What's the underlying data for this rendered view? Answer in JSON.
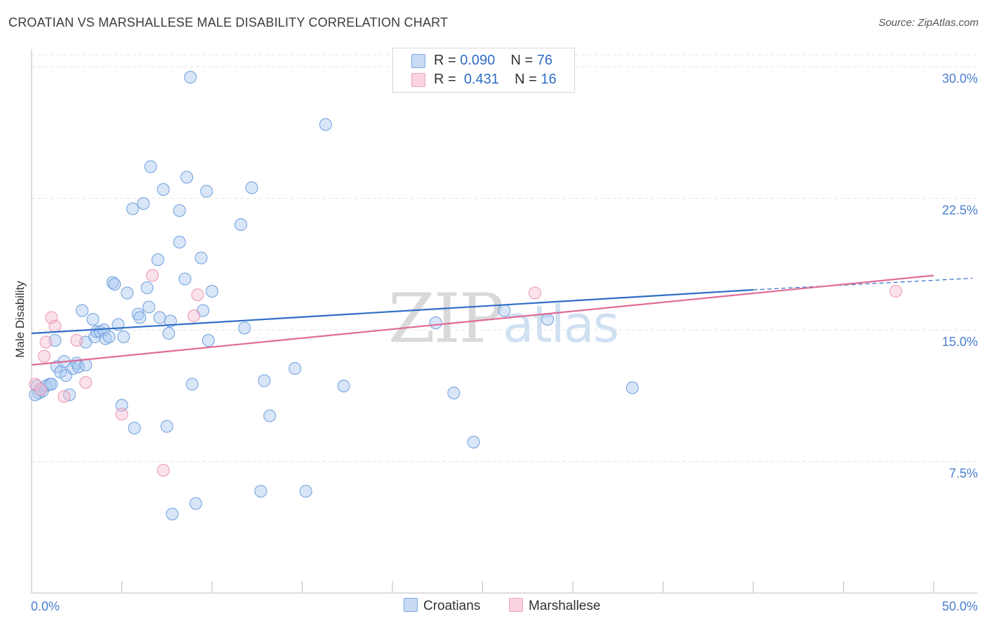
{
  "header": {
    "title": "CROATIAN VS MARSHALLESE MALE DISABILITY CORRELATION CHART",
    "source": "Source: ZipAtlas.com"
  },
  "legend": {
    "rows": [
      {
        "r_label": "R =",
        "r_value": "0.090",
        "n_label": "N =",
        "n_value": "76",
        "color": "#a9c8ef"
      },
      {
        "r_label": "R =",
        "r_value": "0.431",
        "n_label": "N =",
        "n_value": "16",
        "color": "#f6bdd0"
      }
    ],
    "bottom": [
      {
        "label": "Croatians",
        "color": "#a9c8ef"
      },
      {
        "label": "Marshallese",
        "color": "#f6bdd0"
      }
    ]
  },
  "watermark": {
    "zip": "ZIP",
    "atlas": "atlas"
  },
  "chart_data": {
    "type": "scatter",
    "title": "CROATIAN VS MARSHALLESE MALE DISABILITY CORRELATION CHART",
    "xlabel": "",
    "ylabel": "Male Disability",
    "xlim": [
      0,
      50
    ],
    "ylim": [
      0,
      31
    ],
    "x_tick_labels": [
      "0.0%",
      "50.0%"
    ],
    "y_ticks": [
      7.5,
      15.0,
      22.5,
      30.0
    ],
    "y_tick_labels": [
      "7.5%",
      "15.0%",
      "22.5%",
      "30.0%"
    ],
    "grid": true,
    "legend_position": "top-center",
    "series": [
      {
        "name": "Croatians",
        "color": "#a9c8ef",
        "stroke": "#6f9fdc",
        "trend": {
          "x": [
            0,
            50
          ],
          "y": [
            14.8,
            17.9
          ],
          "color": "#2f6dc6",
          "dashed_from": 40
        },
        "points": [
          [
            0.3,
            11.8
          ],
          [
            0.4,
            11.4
          ],
          [
            0.6,
            11.5
          ],
          [
            0.8,
            11.8
          ],
          [
            1.0,
            11.9
          ],
          [
            1.1,
            11.9
          ],
          [
            1.3,
            14.4
          ],
          [
            1.4,
            12.9
          ],
          [
            1.6,
            12.6
          ],
          [
            1.8,
            13.2
          ],
          [
            1.9,
            12.4
          ],
          [
            2.1,
            11.3
          ],
          [
            2.3,
            12.8
          ],
          [
            2.5,
            13.1
          ],
          [
            2.6,
            12.9
          ],
          [
            2.8,
            16.1
          ],
          [
            3.0,
            14.3
          ],
          [
            3.0,
            13.0
          ],
          [
            3.4,
            15.6
          ],
          [
            3.5,
            14.6
          ],
          [
            3.6,
            14.9
          ],
          [
            3.8,
            14.9
          ],
          [
            4.0,
            15.0
          ],
          [
            4.1,
            14.5
          ],
          [
            4.3,
            14.6
          ],
          [
            4.5,
            17.7
          ],
          [
            4.6,
            17.6
          ],
          [
            4.8,
            15.3
          ],
          [
            5.0,
            10.7
          ],
          [
            5.1,
            14.6
          ],
          [
            5.3,
            17.1
          ],
          [
            5.6,
            21.9
          ],
          [
            5.7,
            9.4
          ],
          [
            5.9,
            15.9
          ],
          [
            6.0,
            15.7
          ],
          [
            6.2,
            22.2
          ],
          [
            6.4,
            17.4
          ],
          [
            6.5,
            16.3
          ],
          [
            6.6,
            24.3
          ],
          [
            7.0,
            19.0
          ],
          [
            7.1,
            15.7
          ],
          [
            7.3,
            23.0
          ],
          [
            7.5,
            9.5
          ],
          [
            7.6,
            14.8
          ],
          [
            7.7,
            15.5
          ],
          [
            7.8,
            4.5
          ],
          [
            8.2,
            21.8
          ],
          [
            8.2,
            20.0
          ],
          [
            8.5,
            17.9
          ],
          [
            8.6,
            23.7
          ],
          [
            8.8,
            29.4
          ],
          [
            8.9,
            11.9
          ],
          [
            9.1,
            5.1
          ],
          [
            9.4,
            19.1
          ],
          [
            9.5,
            16.1
          ],
          [
            9.7,
            22.9
          ],
          [
            9.8,
            14.4
          ],
          [
            10.0,
            17.2
          ],
          [
            11.6,
            21.0
          ],
          [
            11.8,
            15.1
          ],
          [
            12.2,
            23.1
          ],
          [
            12.7,
            5.8
          ],
          [
            12.9,
            12.1
          ],
          [
            13.2,
            10.1
          ],
          [
            14.6,
            12.8
          ],
          [
            15.2,
            5.8
          ],
          [
            16.3,
            26.7
          ],
          [
            17.3,
            11.8
          ],
          [
            22.4,
            15.4
          ],
          [
            23.4,
            11.4
          ],
          [
            24.5,
            8.6
          ],
          [
            26.2,
            16.1
          ],
          [
            28.6,
            15.6
          ],
          [
            33.3,
            11.7
          ],
          [
            0.2,
            11.3
          ],
          [
            0.5,
            11.6
          ]
        ]
      },
      {
        "name": "Marshallese",
        "color": "#f6bdd0",
        "stroke": "#e996b2",
        "trend": {
          "x": [
            0,
            50
          ],
          "y": [
            13.0,
            18.1
          ],
          "color": "#e06c95"
        },
        "points": [
          [
            0.2,
            11.9
          ],
          [
            0.5,
            11.6
          ],
          [
            0.7,
            13.5
          ],
          [
            0.8,
            14.3
          ],
          [
            1.1,
            15.7
          ],
          [
            1.3,
            15.2
          ],
          [
            1.8,
            11.2
          ],
          [
            2.5,
            14.4
          ],
          [
            3.0,
            12.0
          ],
          [
            5.0,
            10.2
          ],
          [
            6.7,
            18.1
          ],
          [
            7.3,
            7.0
          ],
          [
            9.0,
            15.8
          ],
          [
            9.2,
            17.0
          ],
          [
            27.9,
            17.1
          ],
          [
            47.9,
            17.2
          ]
        ]
      }
    ]
  }
}
